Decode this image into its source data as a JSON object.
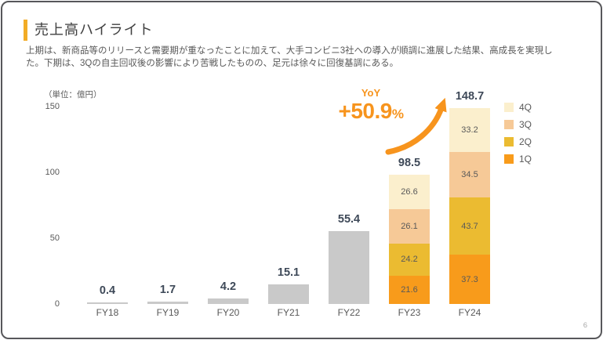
{
  "slide": {
    "title": "売上高ハイライト",
    "body_lines": [
      "上期は、新商品等のリリースと需要期が重なったことに加えて、大手コンビニ3社への導入が順調に進展した結果、高成長を実現し",
      "た。下期は、3Qの自主回収後の影響により苦戦したものの、足元は徐々に回復基調にある。"
    ],
    "accent_color": "#F2AC26",
    "page_number": "6"
  },
  "annotation": {
    "label": "YoY",
    "value": "+50.9",
    "suffix": "%",
    "color": "#F7941D"
  },
  "chart_data": {
    "type": "bar",
    "subtype": "stacked-bar",
    "unit_label": "（単位：億円）",
    "categories": [
      "FY18",
      "FY19",
      "FY20",
      "FY21",
      "FY22",
      "FY23",
      "FY24"
    ],
    "totals": [
      0.4,
      1.7,
      4.2,
      15.1,
      55.4,
      98.5,
      148.7
    ],
    "series": [
      {
        "name": "1Q",
        "color": "#F89B1B",
        "values": [
          null,
          null,
          null,
          null,
          null,
          21.6,
          37.3
        ]
      },
      {
        "name": "2Q",
        "color": "#EBBB31",
        "values": [
          null,
          null,
          null,
          null,
          null,
          24.2,
          43.7
        ]
      },
      {
        "name": "3Q",
        "color": "#F6C997",
        "values": [
          null,
          null,
          null,
          null,
          null,
          26.1,
          34.5
        ]
      },
      {
        "name": "4Q",
        "color": "#FBEFCD",
        "values": [
          null,
          null,
          null,
          null,
          null,
          26.6,
          33.2
        ]
      }
    ],
    "single_bar_color": "#C9C9C9",
    "value_label_color": "#3E4958",
    "axis_label_color": "#595959",
    "y_ticks": [
      0,
      50,
      100,
      150
    ],
    "ylim": [
      0,
      150
    ],
    "grid": false,
    "legend": [
      "4Q",
      "3Q",
      "2Q",
      "1Q"
    ],
    "legend_position": "right"
  }
}
